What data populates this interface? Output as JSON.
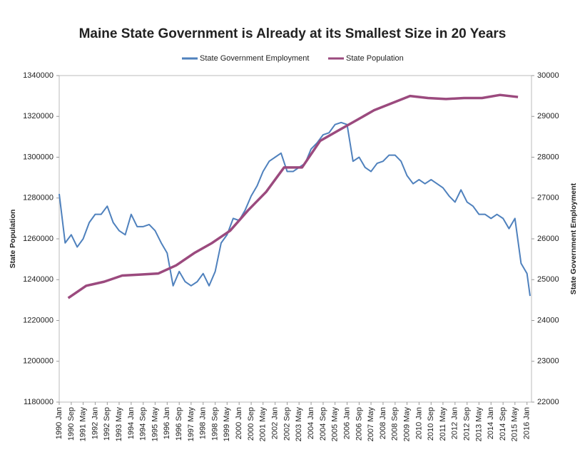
{
  "chart_data": {
    "type": "line",
    "title": "Maine State Government is Already at its Smallest Size in 20 Years",
    "ylabel": "State Population",
    "y2label": "State Government Employment",
    "xlim": [
      1990,
      2016.25
    ],
    "xticks": [
      {
        "value": 1990,
        "label": "1990 Jan"
      },
      {
        "value": 1990.67,
        "label": "1990 Sep"
      },
      {
        "value": 1991.33,
        "label": "1991 May"
      },
      {
        "value": 1992,
        "label": "1992 Jan"
      },
      {
        "value": 1992.67,
        "label": "1992 Sep"
      },
      {
        "value": 1993.33,
        "label": "1993 May"
      },
      {
        "value": 1994,
        "label": "1994 Jan"
      },
      {
        "value": 1994.67,
        "label": "1994 Sep"
      },
      {
        "value": 1995.33,
        "label": "1995 May"
      },
      {
        "value": 1996,
        "label": "1996 Jan"
      },
      {
        "value": 1996.67,
        "label": "1996 Sep"
      },
      {
        "value": 1997.33,
        "label": "1997 May"
      },
      {
        "value": 1998,
        "label": "1998 Jan"
      },
      {
        "value": 1998.67,
        "label": "1998 Sep"
      },
      {
        "value": 1999.33,
        "label": "1999 May"
      },
      {
        "value": 2000,
        "label": "2000 Jan"
      },
      {
        "value": 2000.67,
        "label": "2000 Sep"
      },
      {
        "value": 2001.33,
        "label": "2001 May"
      },
      {
        "value": 2002,
        "label": "2002 Jan"
      },
      {
        "value": 2002.67,
        "label": "2002 Sep"
      },
      {
        "value": 2003.33,
        "label": "2003 May"
      },
      {
        "value": 2004,
        "label": "2004 Jan"
      },
      {
        "value": 2004.67,
        "label": "2004 Sep"
      },
      {
        "value": 2005.33,
        "label": "2005 May"
      },
      {
        "value": 2006,
        "label": "2006 Jan"
      },
      {
        "value": 2006.67,
        "label": "2006 Sep"
      },
      {
        "value": 2007.33,
        "label": "2007 May"
      },
      {
        "value": 2008,
        "label": "2008 Jan"
      },
      {
        "value": 2008.67,
        "label": "2008 Sep"
      },
      {
        "value": 2009.33,
        "label": "2009 May"
      },
      {
        "value": 2010,
        "label": "2010 Jan"
      },
      {
        "value": 2010.67,
        "label": "2010 Sep"
      },
      {
        "value": 2011.33,
        "label": "2011 May"
      },
      {
        "value": 2012,
        "label": "2012 Jan"
      },
      {
        "value": 2012.67,
        "label": "2012 Sep"
      },
      {
        "value": 2013.33,
        "label": "2013 May"
      },
      {
        "value": 2014,
        "label": "2014 Jan"
      },
      {
        "value": 2014.67,
        "label": "2014 Sep"
      },
      {
        "value": 2015.33,
        "label": "2015 May"
      },
      {
        "value": 2016,
        "label": "2016 Jan"
      }
    ],
    "ylim": [
      1180000,
      1340000
    ],
    "yticks": [
      1180000,
      1200000,
      1220000,
      1240000,
      1260000,
      1280000,
      1300000,
      1320000,
      1340000
    ],
    "y2lim": [
      22000,
      30000
    ],
    "y2ticks": [
      22000,
      23000,
      24000,
      25000,
      26000,
      27000,
      28000,
      29000,
      30000
    ],
    "series": [
      {
        "name": "State Government Employment",
        "color": "#4f81bd",
        "axis": "y2",
        "x": [
          1990,
          1990.33,
          1990.67,
          1991,
          1991.33,
          1991.67,
          1992,
          1992.33,
          1992.67,
          1993,
          1993.33,
          1993.67,
          1994,
          1994.33,
          1994.67,
          1995,
          1995.33,
          1995.67,
          1996,
          1996.33,
          1996.67,
          1997,
          1997.33,
          1997.67,
          1998,
          1998.33,
          1998.67,
          1999,
          1999.33,
          1999.67,
          2000,
          2000.33,
          2000.67,
          2001,
          2001.33,
          2001.67,
          2002,
          2002.33,
          2002.67,
          2003,
          2003.33,
          2003.67,
          2004,
          2004.33,
          2004.67,
          2005,
          2005.33,
          2005.67,
          2006,
          2006.33,
          2006.67,
          2007,
          2007.33,
          2007.67,
          2008,
          2008.33,
          2008.67,
          2009,
          2009.33,
          2009.67,
          2010,
          2010.33,
          2010.67,
          2011,
          2011.33,
          2011.67,
          2012,
          2012.33,
          2012.67,
          2013,
          2013.33,
          2013.67,
          2014,
          2014.33,
          2014.67,
          2015,
          2015.33,
          2015.67,
          2016,
          2016.17
        ],
        "values": [
          27100,
          25900,
          26100,
          25800,
          26000,
          26400,
          26600,
          26600,
          26800,
          26400,
          26200,
          26100,
          26600,
          26300,
          26300,
          26350,
          26200,
          25900,
          25650,
          24850,
          25200,
          24950,
          24850,
          24950,
          25150,
          24850,
          25200,
          25900,
          26100,
          26500,
          26450,
          26700,
          27050,
          27300,
          27650,
          27900,
          28000,
          28100,
          27650,
          27650,
          27750,
          27850,
          28200,
          28350,
          28550,
          28600,
          28800,
          28850,
          28800,
          27900,
          28000,
          27750,
          27650,
          27850,
          27900,
          28050,
          28050,
          27900,
          27550,
          27350,
          27450,
          27350,
          27450,
          27350,
          27250,
          27050,
          26900,
          27200,
          26900,
          26800,
          26600,
          26600,
          26500,
          26600,
          26500,
          26250,
          26500,
          25400,
          25150,
          24600
        ]
      },
      {
        "name": "State Population",
        "color": "#9b4a7e",
        "axis": "y",
        "x": [
          1990.5,
          1991.5,
          1992.5,
          1993.5,
          1994.5,
          1995.5,
          1996.5,
          1997.5,
          1998.5,
          1999.5,
          2000.5,
          2001.5,
          2002.5,
          2003.5,
          2004.5,
          2005.5,
          2006.5,
          2007.5,
          2008.5,
          2009.5,
          2010.5,
          2011.5,
          2012.5,
          2013.5,
          2014.5,
          2015.5
        ],
        "values": [
          1231000,
          1237000,
          1239000,
          1242000,
          1242500,
          1243000,
          1247000,
          1253000,
          1258000,
          1264000,
          1274000,
          1283000,
          1295000,
          1295000,
          1308000,
          1313000,
          1318000,
          1323000,
          1326500,
          1330000,
          1329000,
          1328500,
          1329000,
          1329000,
          1330500,
          1329500
        ]
      }
    ]
  }
}
